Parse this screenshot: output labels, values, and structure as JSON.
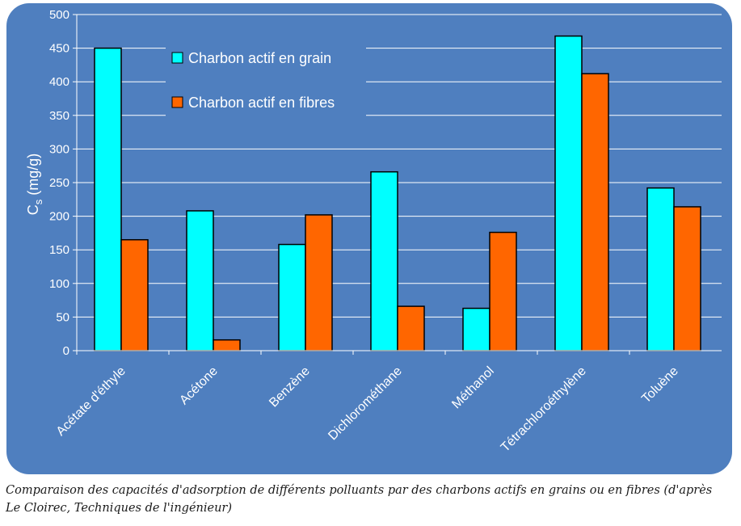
{
  "chart_data": {
    "type": "bar",
    "categories": [
      "Acétate d'éthyle",
      "Acétone",
      "Benzène",
      "Dichlorométhane",
      "Méthanol",
      "Tétrachloroéthylène",
      "Toluène"
    ],
    "series": [
      {
        "name": "Charbon actif en grain",
        "color": "#00ffff",
        "values": [
          450,
          208,
          158,
          266,
          63,
          468,
          242
        ]
      },
      {
        "name": "Charbon actif en fibres",
        "color": "#ff6600",
        "values": [
          165,
          16,
          202,
          66,
          176,
          412,
          214
        ]
      }
    ],
    "ylabel": "Cs (mg/g)",
    "ylabel_main": "C",
    "ylabel_sub": "s",
    "ylabel_unit": " (mg/g)",
    "ylim": [
      0,
      500
    ],
    "yticks": [
      0,
      50,
      100,
      150,
      200,
      250,
      300,
      350,
      400,
      450,
      500
    ],
    "grid": true,
    "legend_position": "top-left",
    "background_color": "#4f7fbf"
  },
  "caption": {
    "line1": "Comparaison des capacités d'adsorption de différents polluants par des charbons actifs en grains ou en fibres (d'après",
    "line2": "Le Cloirec, Techniques de l'ingénieur)"
  }
}
